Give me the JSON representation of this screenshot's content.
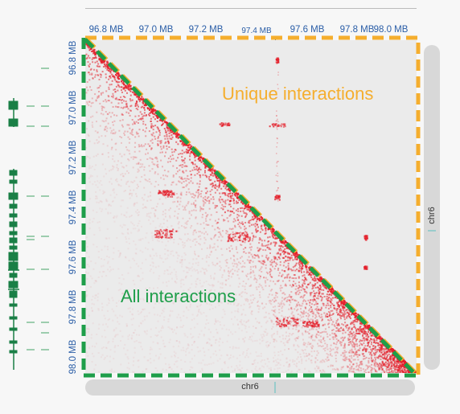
{
  "genome_axis": {
    "ticks": [
      "96.8 MB",
      "97.0 MB",
      "97.2 MB",
      "97.4 MB",
      "97.6 MB",
      "97.8 MB",
      "98.0 MB"
    ]
  },
  "heatmap": {
    "chromosome": "chr6",
    "upper_label": "Unique interactions",
    "lower_label": "All interactions"
  },
  "scrollbars": {
    "vertical_label": "chr6",
    "horizontal_label": "chr6"
  },
  "colors": {
    "axis_text": "#2b5ea7",
    "unique_highlight": "#f5ae2e",
    "all_highlight": "#1e9e4a",
    "contact_color": "#e4202b",
    "gene_color": "#1a7f46"
  }
}
